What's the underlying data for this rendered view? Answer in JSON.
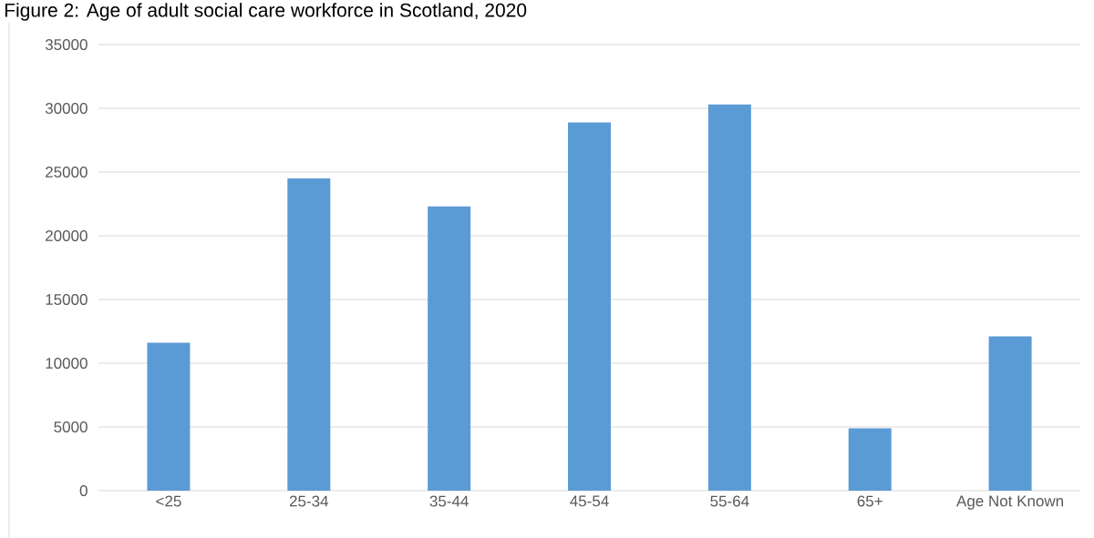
{
  "chart_data": {
    "type": "bar",
    "title": "Figure 2: Age of adult social care workforce in Scotland, 2020",
    "categories": [
      "<25",
      "25-34",
      "35-44",
      "45-54",
      "55-64",
      "65+",
      "Age Not Known"
    ],
    "values": [
      11600,
      24500,
      22300,
      28900,
      30300,
      4900,
      12100
    ],
    "color": "#5b9bd5",
    "ylim": [
      0,
      35000
    ],
    "yticks": [
      0,
      5000,
      10000,
      15000,
      20000,
      25000,
      30000,
      35000
    ],
    "grid": "y"
  }
}
